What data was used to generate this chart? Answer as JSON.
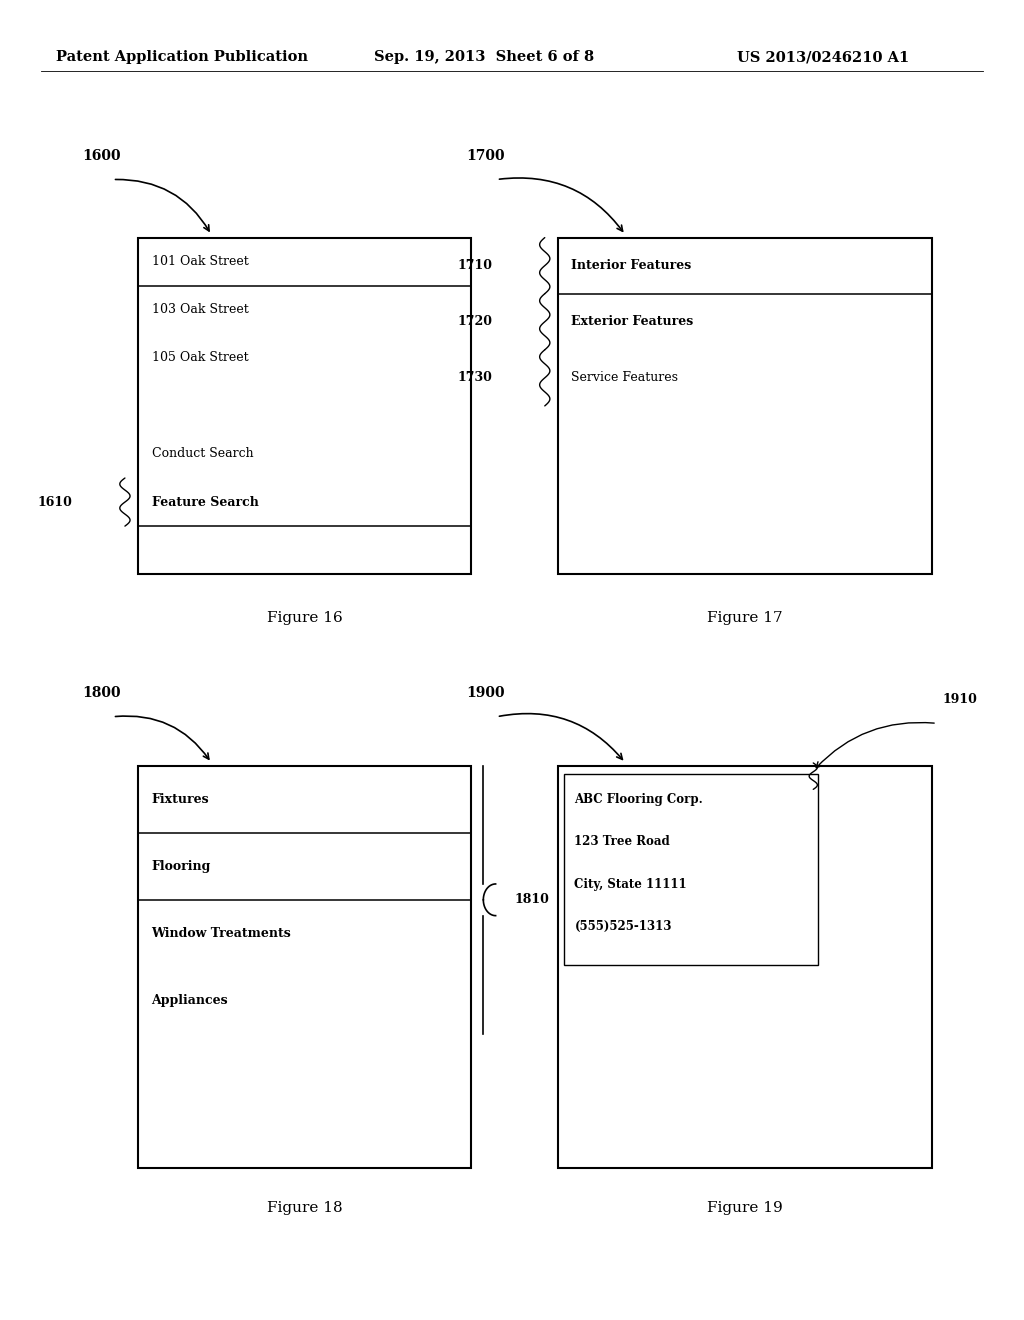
{
  "bg_color": "#ffffff",
  "header_left": "Patent Application Publication",
  "header_center": "Sep. 19, 2013  Sheet 6 of 8",
  "header_right": "US 2013/0246210 A1",
  "fig16": {
    "label": "1600",
    "caption": "Figure 16",
    "bx": 0.135,
    "by": 0.565,
    "bw": 0.325,
    "bh": 0.255,
    "rows": [
      {
        "text": "101 Oak Street",
        "bold": false,
        "line_below": true
      },
      {
        "text": "103 Oak Street",
        "bold": false,
        "line_below": false
      },
      {
        "text": "105 Oak Street",
        "bold": false,
        "line_below": false
      },
      {
        "text": "",
        "bold": false,
        "line_below": false
      },
      {
        "text": "Conduct Search",
        "bold": false,
        "line_below": false
      },
      {
        "text": "Feature Search",
        "bold": true,
        "line_below": true
      },
      {
        "text": "",
        "bold": false,
        "line_below": false
      }
    ],
    "callout_row": 5,
    "callout_label": "1610"
  },
  "fig17": {
    "label": "1700",
    "caption": "Figure 17",
    "bx": 0.545,
    "by": 0.565,
    "bw": 0.365,
    "bh": 0.255,
    "rows": [
      {
        "text": "Interior Features",
        "bold": true,
        "line_below": true,
        "callout": "1710"
      },
      {
        "text": "Exterior Features",
        "bold": true,
        "line_below": false,
        "callout": "1720"
      },
      {
        "text": "Service Features",
        "bold": false,
        "line_below": false,
        "callout": "1730"
      },
      {
        "text": "",
        "bold": false,
        "line_below": false,
        "callout": null
      },
      {
        "text": "",
        "bold": false,
        "line_below": false,
        "callout": null
      },
      {
        "text": "",
        "bold": false,
        "line_below": false,
        "callout": null
      }
    ]
  },
  "fig18": {
    "label": "1800",
    "caption": "Figure 18",
    "bx": 0.135,
    "by": 0.115,
    "bw": 0.325,
    "bh": 0.305,
    "rows": [
      {
        "text": "Fixtures",
        "bold": true,
        "line_below": true
      },
      {
        "text": "Flooring",
        "bold": true,
        "line_below": true
      },
      {
        "text": "Window Treatments",
        "bold": true,
        "line_below": false
      },
      {
        "text": "Appliances",
        "bold": true,
        "line_below": false
      },
      {
        "text": "",
        "bold": false,
        "line_below": false
      },
      {
        "text": "",
        "bold": false,
        "line_below": false
      }
    ],
    "brace_rows": 4,
    "brace_label": "1810"
  },
  "fig19": {
    "label": "1900",
    "caption": "Figure 19",
    "bx": 0.545,
    "by": 0.115,
    "bw": 0.365,
    "bh": 0.305,
    "content_lines": [
      {
        "text": "ABC Flooring Corp.",
        "bold": true
      },
      {
        "text": "123 Tree Road",
        "bold": true
      },
      {
        "text": "City, State 11111",
        "bold": true
      },
      {
        "text": "(555)525-1313",
        "bold": true
      }
    ],
    "callout_label": "1910"
  }
}
